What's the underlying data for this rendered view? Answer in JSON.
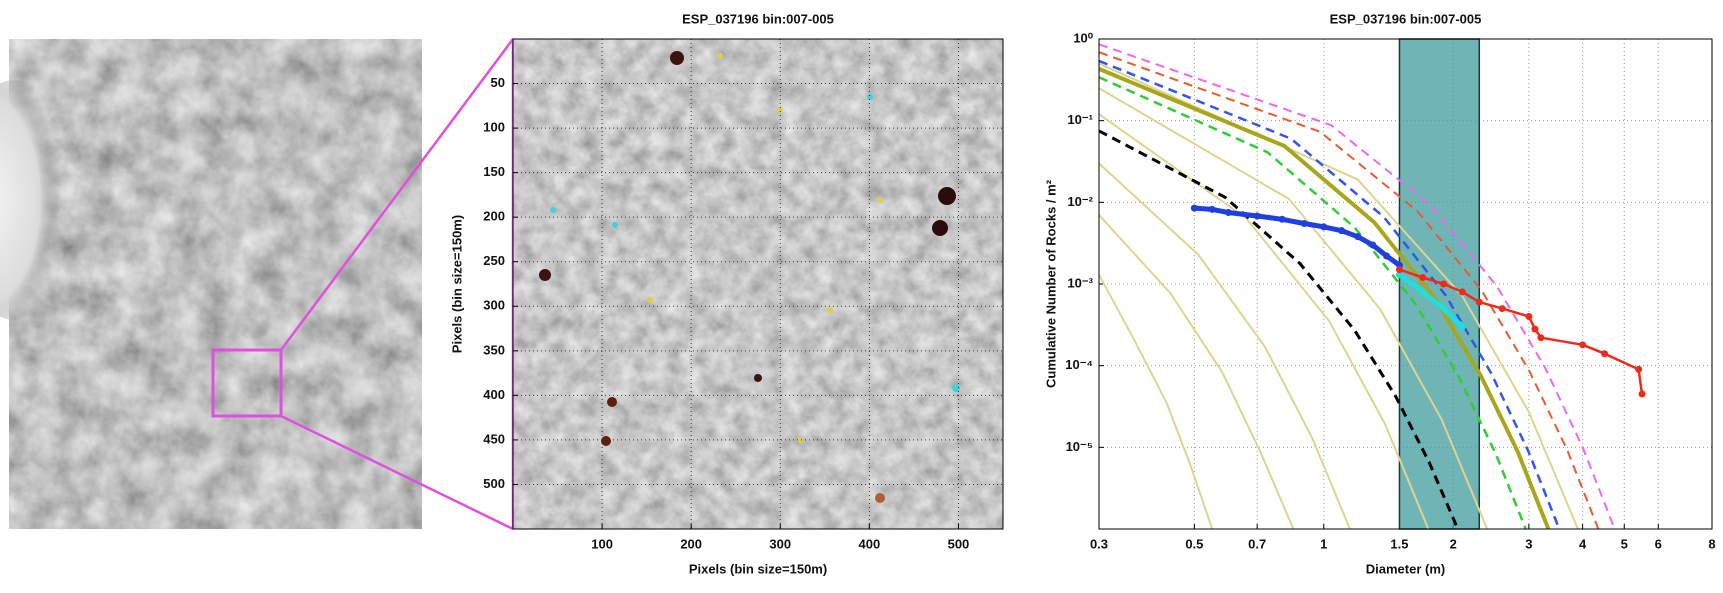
{
  "chart_data": [
    {
      "type": "image",
      "title": "ESP_037196 bin:007-005",
      "xlabel": "Pixels (bin size=150m)",
      "ylabel": "Pixels (bin size=150m)",
      "xlim": [
        0,
        550
      ],
      "ylim": [
        0,
        550
      ],
      "y_reversed": true,
      "xticks": [
        100,
        200,
        300,
        400,
        500
      ],
      "yticks": [
        50,
        100,
        150,
        200,
        250,
        300,
        350,
        400,
        450,
        500
      ],
      "grid": true
    },
    {
      "type": "line",
      "title": "ESP_037196 bin:007-005",
      "xlabel": "Diameter (m)",
      "ylabel": "Cumulative Number of Rocks / m²",
      "xscale": "log",
      "yscale": "log",
      "xlim": [
        0.3,
        8
      ],
      "ylim": [
        1e-06,
        1
      ],
      "xticks": [
        0.3,
        0.5,
        0.7,
        1,
        1.5,
        2,
        3,
        4,
        5,
        6,
        8
      ],
      "yticks": [
        {
          "value": 1,
          "label": "10⁰"
        },
        {
          "value": 0.1,
          "label": "10⁻¹"
        },
        {
          "value": 0.01,
          "label": "10⁻²"
        },
        {
          "value": 0.001,
          "label": "10⁻³"
        },
        {
          "value": 0.0001,
          "label": "10⁻⁴"
        },
        {
          "value": 1e-05,
          "label": "10⁻⁵"
        }
      ],
      "grid": true,
      "span": {
        "x": [
          1.5,
          2.3
        ],
        "color": "#3f9c9c"
      },
      "series": [
        {
          "color": "#ddd58f",
          "dashed": false,
          "width": 2,
          "x": [
            0.3,
            0.36,
            0.43,
            0.49,
            0.55
          ],
          "values": [
            0.0013,
            0.00022,
            3.6e-05,
            6e-06,
            1e-06
          ]
        },
        {
          "color": "#ddd58f",
          "dashed": false,
          "width": 2,
          "x": [
            0.3,
            0.44,
            0.58,
            0.71,
            0.85
          ],
          "values": [
            0.007,
            0.00077,
            8.4e-05,
            9.1e-06,
            1e-06
          ]
        },
        {
          "color": "#ddd58f",
          "dashed": false,
          "width": 2,
          "x": [
            0.3,
            0.51,
            0.73,
            0.94,
            1.15
          ],
          "values": [
            0.03,
            0.0023,
            0.00017,
            1.3e-05,
            1e-06
          ]
        },
        {
          "color": "#ddd58f",
          "dashed": false,
          "width": 2,
          "x": [
            0.3,
            0.66,
            1.03,
            1.39,
            1.75
          ],
          "values": [
            0.12,
            0.0064,
            0.00035,
            1.9e-05,
            1e-06
          ]
        },
        {
          "color": "#ddd58f",
          "dashed": false,
          "width": 2,
          "x": [
            0.3,
            0.83,
            1.35,
            1.88,
            2.4
          ],
          "values": [
            0.25,
            0.011,
            0.0005,
            2.2e-05,
            1e-06
          ]
        },
        {
          "color": "#ddd58f",
          "dashed": false,
          "width": 2,
          "x": [
            0.3,
            1.2,
            2.1,
            3.0,
            3.9
          ],
          "values": [
            0.5,
            0.019,
            0.00071,
            2.7e-05,
            1e-06
          ]
        },
        {
          "color": "#000000",
          "dashed": true,
          "width": 3,
          "x": [
            0.3,
            0.59,
            0.88,
            1.18,
            1.47,
            1.76,
            2.05
          ],
          "values": [
            0.075,
            0.0115,
            0.00178,
            0.00027,
            4.2e-05,
            6.5e-06,
            1e-06
          ]
        },
        {
          "color": "#33cc33",
          "dashed": true,
          "width": 2.5,
          "x": [
            0.3,
            0.74,
            1.18,
            1.63,
            2.07,
            2.51,
            2.95
          ],
          "values": [
            0.34,
            0.041,
            0.0049,
            0.00058,
            7e-05,
            8.4e-06,
            1e-06
          ]
        },
        {
          "color": "#a9a51c",
          "dashed": false,
          "width": 4,
          "x": [
            0.3,
            0.81,
            1.31,
            1.82,
            2.32,
            2.83,
            3.33
          ],
          "values": [
            0.43,
            0.049,
            0.0057,
            0.00065,
            7.5e-05,
            8.7e-06,
            1e-06
          ]
        },
        {
          "color": "#3355ee",
          "dashed": true,
          "width": 2.5,
          "x": [
            0.3,
            0.84,
            1.38,
            1.92,
            2.45,
            2.99,
            3.53
          ],
          "values": [
            0.54,
            0.06,
            0.0066,
            0.00073,
            8.1e-05,
            9e-06,
            1e-06
          ]
        },
        {
          "color": "#e85a30",
          "dashed": true,
          "width": 2,
          "x": [
            0.3,
            0.98,
            1.65,
            2.33,
            3.0,
            3.68,
            4.35
          ],
          "values": [
            0.69,
            0.073,
            0.0078,
            0.00083,
            8.8e-05,
            9.4e-06,
            1e-06
          ]
        },
        {
          "color": "#ee66ee",
          "dashed": true,
          "width": 2,
          "x": [
            0.3,
            1.04,
            1.78,
            2.53,
            3.27,
            4.01,
            4.75
          ],
          "values": [
            0.86,
            0.088,
            0.009,
            0.00093,
            9.5e-05,
            9.7e-06,
            1e-06
          ]
        },
        {
          "color": "#1f3fe0",
          "dashed": false,
          "width": 5,
          "marker": true,
          "x": [
            0.5,
            0.55,
            0.6,
            0.7,
            0.8,
            0.9,
            1.0,
            1.1,
            1.2,
            1.3,
            1.4,
            1.5
          ],
          "values": [
            0.0085,
            0.0082,
            0.0075,
            0.0068,
            0.0062,
            0.0055,
            0.005,
            0.0045,
            0.0038,
            0.003,
            0.0022,
            0.0017
          ]
        },
        {
          "color": "#22dddd",
          "dashed": false,
          "width": 5,
          "marker": true,
          "x": [
            1.5,
            1.7,
            1.9,
            2.1
          ],
          "values": [
            0.0013,
            0.0008,
            0.0005,
            0.0003
          ]
        },
        {
          "color": "#ee2a1a",
          "dashed": false,
          "width": 2.5,
          "marker": true,
          "x": [
            1.5,
            1.7,
            1.9,
            2.1,
            2.3,
            2.6,
            3.0,
            3.1,
            3.2,
            4.0,
            4.5,
            5.4,
            5.5
          ],
          "values": [
            0.0015,
            0.0012,
            0.001,
            0.0008,
            0.0006,
            0.0005,
            0.0004,
            0.00028,
            0.00022,
            0.00018,
            0.00014,
            9e-05,
            4.5e-05
          ]
        }
      ]
    }
  ]
}
